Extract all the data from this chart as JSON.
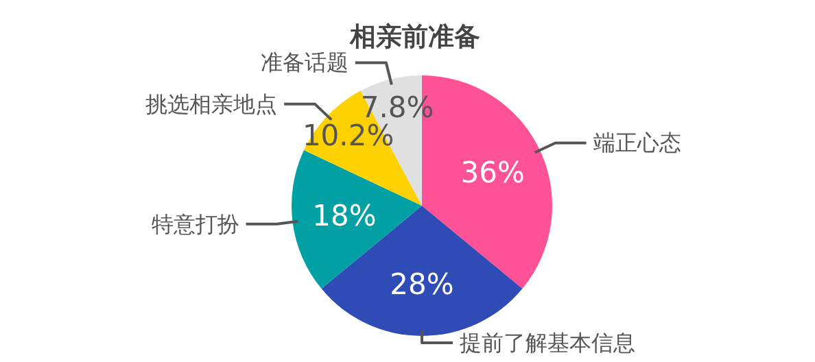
{
  "chart_data": {
    "type": "pie",
    "title": "相亲前准备",
    "categories": [
      "端正心态",
      "提前了解基本信息",
      "特意打扮",
      "挑选相亲地点",
      "准备话题"
    ],
    "values": [
      36,
      28,
      18,
      10.2,
      7.8
    ],
    "colors": [
      "#fe5196",
      "#2e4bb6",
      "#00a0a4",
      "#fed100",
      "#e0e0e0"
    ],
    "value_labels": [
      "36%",
      "28%",
      "18%",
      "10.2%",
      "7.8%"
    ]
  }
}
